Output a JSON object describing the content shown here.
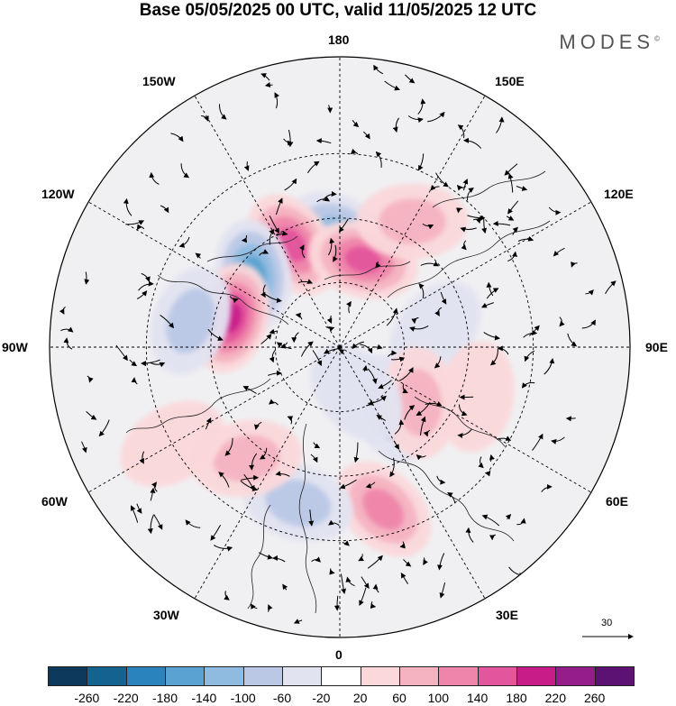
{
  "title": "Base 05/05/2025 00 UTC, valid 11/05/2025 12 UTC",
  "brand": "MODES",
  "brand_mark": "©",
  "longitude_labels": {
    "top": "180",
    "bottom": "0",
    "left": "90W",
    "right": "90E",
    "upper_left_1": "150W",
    "upper_left_2": "120W",
    "upper_right_1": "150E",
    "upper_right_2": "120E",
    "lower_left_1": "60W",
    "lower_left_2": "30W",
    "lower_right_1": "60E",
    "lower_right_2": "30E"
  },
  "reference_vector": "30",
  "colorbar": {
    "labels": [
      "-260",
      "-220",
      "-180",
      "-140",
      "-100",
      "-60",
      "-20",
      "20",
      "60",
      "100",
      "140",
      "180",
      "220",
      "260"
    ],
    "colors": [
      "#0d3a5c",
      "#13628f",
      "#2b83bd",
      "#5aa2d2",
      "#8fbbe0",
      "#bac8e6",
      "#e2e3f1",
      "#ffffff",
      "#fbd8da",
      "#f5b3c0",
      "#ef85aa",
      "#e3559c",
      "#c81d89",
      "#941c8b",
      "#5c1273"
    ]
  },
  "anomaly_centers": [
    {
      "lon": 180,
      "lat": 55,
      "value": -150
    },
    {
      "lon": 205,
      "lat": 55,
      "value": 185
    },
    {
      "lon": 230,
      "lat": 55,
      "value": -175
    },
    {
      "lon": 255,
      "lat": 55,
      "value": 200
    },
    {
      "lon": 260,
      "lat": 43,
      "value": -110
    },
    {
      "lon": 165,
      "lat": 62,
      "value": 175
    },
    {
      "lon": 150,
      "lat": 45,
      "value": 90
    },
    {
      "lon": 100,
      "lat": 60,
      "value": -70
    },
    {
      "lon": 70,
      "lat": 45,
      "value": 60
    },
    {
      "lon": 40,
      "lat": 65,
      "value": -85
    },
    {
      "lon": 55,
      "lat": 60,
      "value": 100
    },
    {
      "lon": 15,
      "lat": 38,
      "value": 130
    },
    {
      "lon": 345,
      "lat": 40,
      "value": -90
    },
    {
      "lon": 320,
      "lat": 45,
      "value": 90
    },
    {
      "lon": 300,
      "lat": 30,
      "value": 55
    },
    {
      "lon": 20,
      "lat": 75,
      "value": -40
    }
  ]
}
